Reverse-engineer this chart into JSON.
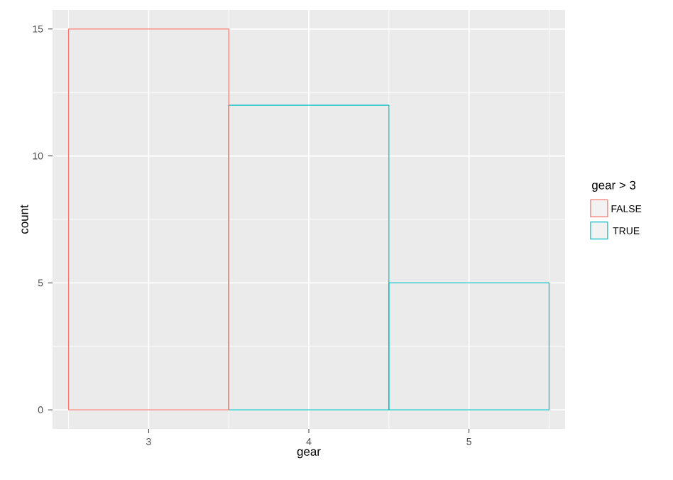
{
  "chart_data": {
    "type": "bar",
    "xlabel": "gear",
    "ylabel": "count",
    "legend_title": "gear > 3",
    "categories": [
      "3",
      "4",
      "5"
    ],
    "series": [
      {
        "name": "TRUE",
        "color": "#00bfc4",
        "values": [
          null,
          12,
          5
        ]
      },
      {
        "name": "FALSE",
        "color": "#f8766d",
        "values": [
          15,
          null,
          null
        ]
      }
    ],
    "ylim": [
      -0.75,
      15.75
    ],
    "yticks": [
      0,
      5,
      10,
      15
    ],
    "grid": true,
    "legend": "right"
  }
}
